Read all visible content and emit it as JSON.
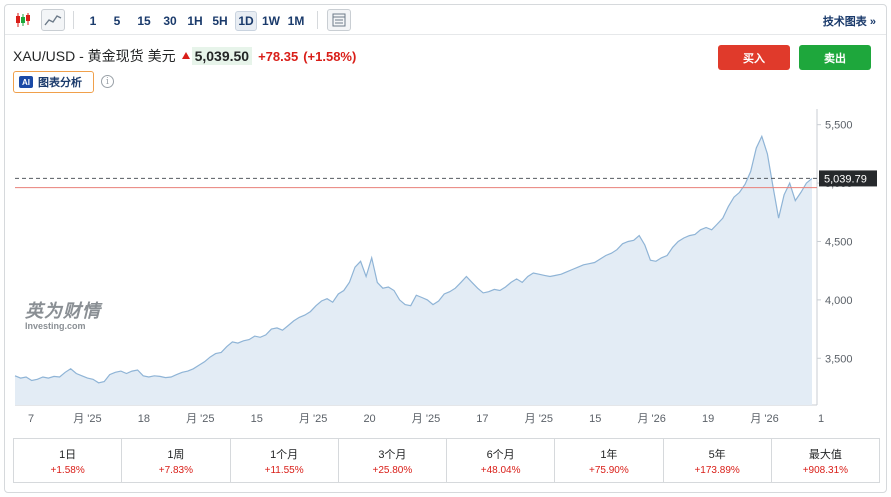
{
  "toolbar": {
    "intervals": [
      "1",
      "5",
      "15",
      "30",
      "1H",
      "5H",
      "1D",
      "1W",
      "1M"
    ],
    "active_interval": "1D",
    "technical_chart_label": "技术图表 »"
  },
  "header": {
    "instrument": "XAU/USD - 黄金现货 美元",
    "price": "5,039.50",
    "change": "+78.35",
    "change_pct": "(+1.58%)",
    "buy_label": "买入",
    "sell_label": "卖出",
    "ai_badge": "AI",
    "ai_label": "图表分析",
    "info_icon": "i"
  },
  "watermark": {
    "cn": "英为财情",
    "en": "Investing.com"
  },
  "chart_data": {
    "type": "area",
    "y_ticks": [
      "5,500",
      "5,000",
      "4,500",
      "4,000",
      "3,500"
    ],
    "ylim": [
      3100,
      5600
    ],
    "x_tick_labels": [
      "7",
      "月 '25",
      "18",
      "月 '25",
      "15",
      "月 '25",
      "20",
      "月 '25",
      "17",
      "月 '25",
      "15",
      "月 '26",
      "19",
      "月 '26",
      "1"
    ],
    "current_price_label": "5,039.79",
    "current_price": 5039.79,
    "previous_close": 4961.15,
    "values": [
      3350,
      3330,
      3340,
      3310,
      3320,
      3340,
      3330,
      3345,
      3340,
      3380,
      3410,
      3370,
      3350,
      3330,
      3320,
      3290,
      3300,
      3360,
      3380,
      3390,
      3370,
      3390,
      3400,
      3350,
      3340,
      3350,
      3345,
      3335,
      3340,
      3360,
      3380,
      3390,
      3410,
      3440,
      3470,
      3510,
      3540,
      3550,
      3600,
      3640,
      3630,
      3650,
      3660,
      3690,
      3680,
      3700,
      3750,
      3760,
      3740,
      3780,
      3820,
      3850,
      3870,
      3900,
      3950,
      3990,
      4010,
      3980,
      4050,
      4080,
      4150,
      4280,
      4330,
      4200,
      4360,
      4150,
      4100,
      4110,
      4080,
      4000,
      3960,
      3950,
      4040,
      4020,
      4000,
      3960,
      3990,
      4050,
      4070,
      4100,
      4150,
      4200,
      4150,
      4100,
      4060,
      4070,
      4090,
      4080,
      4110,
      4150,
      4180,
      4150,
      4200,
      4230,
      4220,
      4210,
      4200,
      4210,
      4220,
      4240,
      4260,
      4280,
      4300,
      4310,
      4320,
      4350,
      4380,
      4400,
      4430,
      4480,
      4500,
      4510,
      4550,
      4470,
      4340,
      4330,
      4360,
      4380,
      4450,
      4500,
      4530,
      4550,
      4560,
      4600,
      4620,
      4600,
      4650,
      4700,
      4800,
      4880,
      4920,
      4990,
      5100,
      5300,
      5400,
      5250,
      4970,
      4700,
      4900,
      5000,
      4850,
      4920,
      5000,
      5040
    ]
  },
  "performance": [
    {
      "label": "1日",
      "value": "+1.58%"
    },
    {
      "label": "1周",
      "value": "+7.83%"
    },
    {
      "label": "1个月",
      "value": "+11.55%"
    },
    {
      "label": "3个月",
      "value": "+25.80%"
    },
    {
      "label": "6个月",
      "value": "+48.04%"
    },
    {
      "label": "1年",
      "value": "+75.90%"
    },
    {
      "label": "5年",
      "value": "+173.89%"
    },
    {
      "label": "最大值",
      "value": "+908.31%"
    }
  ]
}
